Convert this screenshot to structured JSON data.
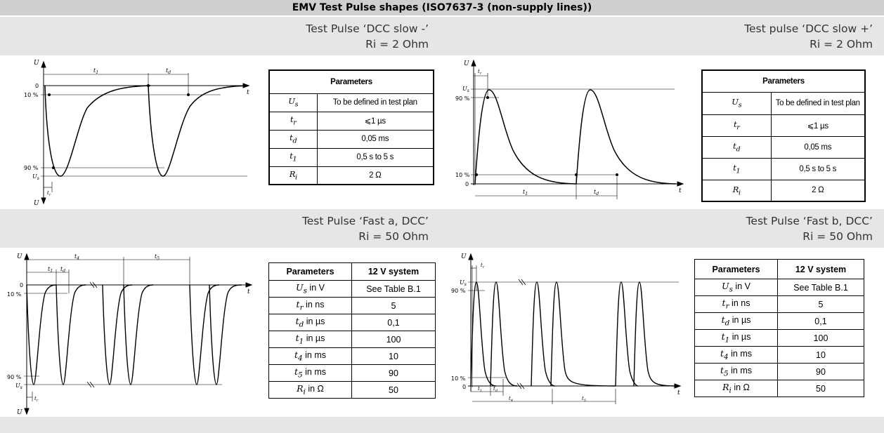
{
  "title": "EMV Test Pulse shapes (ISO7637-3 (non-supply lines))",
  "pulses": [
    {
      "name": "Test Pulse ‘DCC slow -’",
      "ri": "Ri = 2 Ohm",
      "figure_labels": {
        "axis_u": "U",
        "axis_t": "t",
        "level_0": "0",
        "level_10": "10 %",
        "level_90": "90 %",
        "us": "U",
        "us_sub": "s",
        "tr": "t",
        "tr_sub": "r",
        "td": "t",
        "td_sub": "d",
        "t1": "t",
        "t1_sub": "1",
        "axis_u_neg": "U"
      },
      "table": {
        "headers": [
          "Parameters"
        ],
        "rows": [
          {
            "sym": "U",
            "sub": "s",
            "value": "To be defined in test plan"
          },
          {
            "sym": "t",
            "sub": "r",
            "value": "⩽1 µs"
          },
          {
            "sym": "t",
            "sub": "d",
            "value": "0,05 ms"
          },
          {
            "sym": "t",
            "sub": "1",
            "value": "0,5 s to 5 s"
          },
          {
            "sym": "R",
            "sub": "i",
            "value": "2 Ω"
          }
        ]
      }
    },
    {
      "name": "Test pulse ‘DCC slow +’",
      "ri": "Ri = 2 Ohm",
      "figure_labels": {
        "axis_u": "U",
        "axis_t": "t",
        "level_0": "0",
        "level_10": "10 %",
        "level_90": "90 %",
        "us": "U",
        "us_sub": "s",
        "tr": "t",
        "tr_sub": "r",
        "td": "t",
        "td_sub": "d",
        "t1": "t",
        "t1_sub": "1"
      },
      "table": {
        "headers": [
          "Parameters"
        ],
        "rows": [
          {
            "sym": "U",
            "sub": "s",
            "value": "To be defined in test plan"
          },
          {
            "sym": "t",
            "sub": "r",
            "value": "⩽1 µs"
          },
          {
            "sym": "t",
            "sub": "d",
            "value": "0,05 ms"
          },
          {
            "sym": "t",
            "sub": "1",
            "value": "0,5 s to 5 s"
          },
          {
            "sym": "R",
            "sub": "i",
            "value": "2 Ω"
          }
        ]
      }
    },
    {
      "name": "Test Pulse ‘Fast a, DCC’",
      "ri": "Ri = 50 Ohm",
      "figure_labels": {
        "axis_u": "U",
        "axis_t": "t",
        "level_0": "0",
        "level_10": "10 %",
        "level_90": "90 %",
        "us": "U",
        "us_sub": "s",
        "tr": "t",
        "tr_sub": "r",
        "td": "t",
        "td_sub": "d",
        "t1": "t",
        "t1_sub": "1",
        "t4": "t",
        "t4_sub": "4",
        "t5": "t",
        "t5_sub": "5",
        "axis_u_neg": "U"
      },
      "table": {
        "headers": [
          "Parameters",
          "12 V system"
        ],
        "rows": [
          {
            "sym": "U",
            "sub": "s",
            "unit": " in V",
            "value": "See Table B.1"
          },
          {
            "sym": "t",
            "sub": "r",
            "unit": " in ns",
            "value": "5"
          },
          {
            "sym": "t",
            "sub": "d",
            "unit": " in µs",
            "value": "0,1"
          },
          {
            "sym": "t",
            "sub": "1",
            "unit": " in µs",
            "value": "100"
          },
          {
            "sym": "t",
            "sub": "4",
            "unit": " in ms",
            "value": "10"
          },
          {
            "sym": "t",
            "sub": "5",
            "unit": " in ms",
            "value": "90"
          },
          {
            "sym": "R",
            "sub": "i",
            "unit": " in Ω",
            "value": "50"
          }
        ]
      }
    },
    {
      "name": "Test Pulse ‘Fast b, DCC’",
      "ri": "Ri = 50 Ohm",
      "figure_labels": {
        "axis_u": "U",
        "axis_t": "t",
        "level_0": "0",
        "level_10": "10 %",
        "level_90": "90 %",
        "us": "U",
        "us_sub": "s",
        "tr": "t",
        "tr_sub": "r",
        "td": "t",
        "td_sub": "d",
        "t1": "t",
        "t1_sub": "1",
        "t4": "t",
        "t4_sub": "4",
        "t5": "t",
        "t5_sub": "5"
      },
      "table": {
        "headers": [
          "Parameters",
          "12 V system"
        ],
        "rows": [
          {
            "sym": "U",
            "sub": "s",
            "unit": " in V",
            "value": "See Table B.1"
          },
          {
            "sym": "t",
            "sub": "r",
            "unit": " in ns",
            "value": "5"
          },
          {
            "sym": "t",
            "sub": "d",
            "unit": " in µs",
            "value": "0,1"
          },
          {
            "sym": "t",
            "sub": "1",
            "unit": " in µs",
            "value": "100"
          },
          {
            "sym": "t",
            "sub": "4",
            "unit": " in ms",
            "value": "10"
          },
          {
            "sym": "t",
            "sub": "5",
            "unit": " in ms",
            "value": "90"
          },
          {
            "sym": "R",
            "sub": "i",
            "unit": " in Ω",
            "value": "50"
          }
        ]
      }
    }
  ],
  "colors": {
    "title_bg": "#cfcfcf",
    "band_bg": "#e6e6e6"
  }
}
